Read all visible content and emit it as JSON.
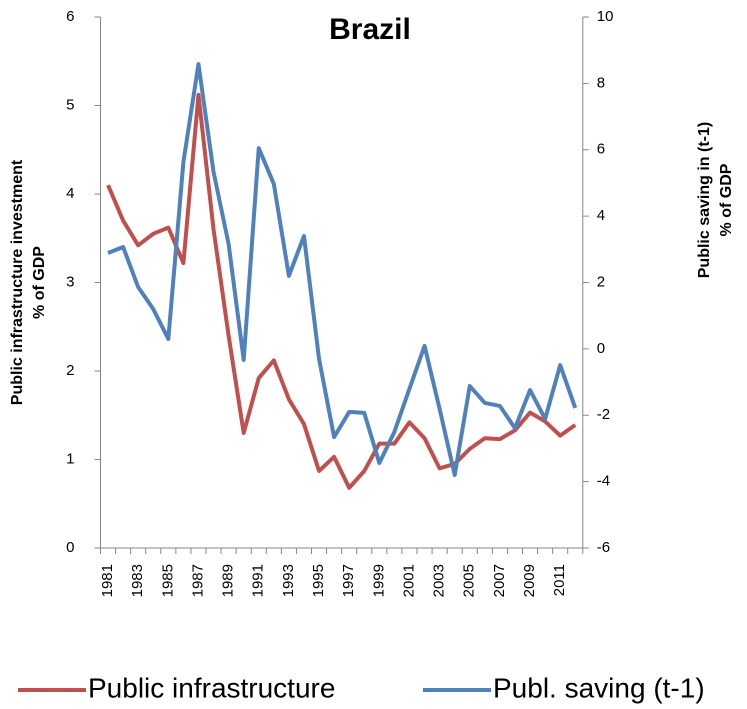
{
  "chart_data": {
    "type": "line",
    "title": "Brazil",
    "y_label": [
      "Public infrastructure investment",
      "% of GDP"
    ],
    "y2_label": [
      "Public saving in (t-1)",
      "% of GDP"
    ],
    "categories": [
      "1981",
      null,
      "1983",
      null,
      "1985",
      null,
      "1987",
      null,
      "1989",
      null,
      "1991",
      null,
      "1993",
      null,
      "1995",
      null,
      "1997",
      null,
      "1999",
      null,
      "2001",
      null,
      "2003",
      null,
      "2005",
      null,
      "2007",
      null,
      "2009",
      null,
      "2011",
      null
    ],
    "ylim": [
      0,
      6
    ],
    "yticks": [
      0,
      1,
      2,
      3,
      4,
      5,
      6
    ],
    "y2lim": [
      -6,
      10
    ],
    "y2ticks": [
      -6,
      -4,
      -2,
      0,
      2,
      4,
      6,
      8,
      10
    ],
    "legend": "bottom",
    "series": [
      {
        "name": "Public infrastructure",
        "color": "#c0504d",
        "values": [
          4.1,
          3.7,
          3.42,
          3.55,
          3.62,
          3.22,
          5.12,
          3.6,
          2.4,
          1.3,
          1.92,
          2.12,
          1.68,
          1.4,
          0.87,
          1.03,
          0.68,
          0.87,
          1.18,
          1.18,
          1.42,
          1.24,
          0.9,
          0.95,
          1.12,
          1.24,
          1.23,
          1.33,
          1.53,
          1.43,
          1.27,
          1.39
        ]
      },
      {
        "name": "Publ. saving (t-1)",
        "color": "#4f81bd",
        "axis": "y2",
        "values": [
          2.89,
          3.07,
          1.86,
          1.2,
          0.3,
          5.63,
          8.58,
          5.33,
          3.16,
          -0.33,
          6.05,
          4.97,
          2.2,
          3.4,
          -0.3,
          -2.66,
          -1.9,
          -1.93,
          -3.44,
          -2.5,
          -1.2,
          0.09,
          -1.81,
          -3.8,
          -1.12,
          -1.63,
          -1.72,
          -2.39,
          -1.24,
          -2.11,
          -0.49,
          -1.78
        ]
      }
    ]
  }
}
